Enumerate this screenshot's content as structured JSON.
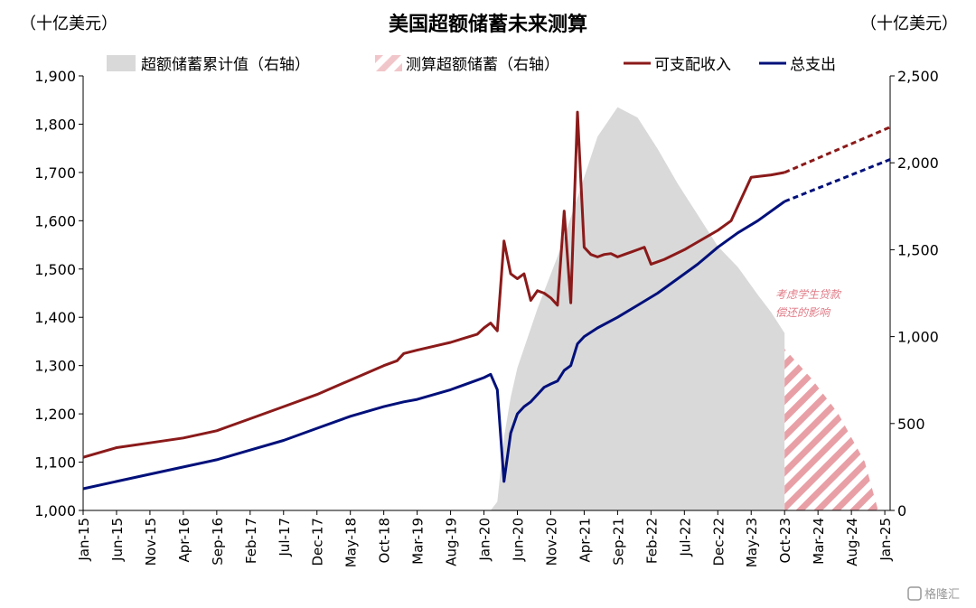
{
  "chart_data": {
    "type": "line",
    "title": "美国超额储蓄未来测算",
    "unit_left": "（十亿美元）",
    "unit_right": "（十亿美元）",
    "legend": [
      {
        "name": "超额储蓄累计值（右轴）",
        "kind": "area",
        "color": "#d9d9d9"
      },
      {
        "name": "测算超额储蓄（右轴）",
        "kind": "hatch",
        "color": "#e8a0a6"
      },
      {
        "name": "可支配收入",
        "kind": "line",
        "color": "#8b1a1a"
      },
      {
        "name": "总支出",
        "kind": "line",
        "color": "#00107a"
      }
    ],
    "y_left": {
      "min": 1000,
      "max": 1900,
      "ticks": [
        "1,000",
        "1,100",
        "1,200",
        "1,300",
        "1,400",
        "1,500",
        "1,600",
        "1,700",
        "1,800",
        "1,900"
      ]
    },
    "y_right": {
      "min": 0,
      "max": 2500,
      "ticks": [
        "0",
        "500",
        "1,000",
        "1,500",
        "2,000",
        "2,500"
      ]
    },
    "x_ticks": [
      "Jan-15",
      "Jun-15",
      "Nov-15",
      "Apr-16",
      "Sep-16",
      "Feb-17",
      "Jul-17",
      "Dec-17",
      "May-18",
      "Oct-18",
      "Mar-19",
      "Aug-19",
      "Jan-20",
      "Jun-20",
      "Nov-20",
      "Apr-21",
      "Sep-21",
      "Feb-22",
      "Jul-22",
      "Dec-22",
      "May-23",
      "Oct-23",
      "Mar-24",
      "Aug-24",
      "Jan-25"
    ],
    "annotation": [
      "考虑学生贷款",
      "偿还的影响"
    ],
    "series": [
      {
        "name": "可支配收入",
        "axis": "left",
        "color": "#8b1a1a",
        "points": [
          [
            "2015-01",
            1110
          ],
          [
            "2015-06",
            1130
          ],
          [
            "2015-11",
            1140
          ],
          [
            "2016-04",
            1150
          ],
          [
            "2016-09",
            1165
          ],
          [
            "2017-02",
            1190
          ],
          [
            "2017-07",
            1215
          ],
          [
            "2017-12",
            1240
          ],
          [
            "2018-05",
            1270
          ],
          [
            "2018-10",
            1300
          ],
          [
            "2018-12",
            1310
          ],
          [
            "2019-01",
            1325
          ],
          [
            "2019-03",
            1332
          ],
          [
            "2019-08",
            1348
          ],
          [
            "2019-12",
            1365
          ],
          [
            "2020-01",
            1378
          ],
          [
            "2020-02",
            1388
          ],
          [
            "2020-03",
            1372
          ],
          [
            "2020-04",
            1558
          ],
          [
            "2020-05",
            1490
          ],
          [
            "2020-06",
            1480
          ],
          [
            "2020-07",
            1490
          ],
          [
            "2020-08",
            1435
          ],
          [
            "2020-09",
            1455
          ],
          [
            "2020-10",
            1450
          ],
          [
            "2020-11",
            1440
          ],
          [
            "2020-12",
            1425
          ],
          [
            "2021-01",
            1620
          ],
          [
            "2021-02",
            1430
          ],
          [
            "2021-03",
            1825
          ],
          [
            "2021-04",
            1545
          ],
          [
            "2021-05",
            1530
          ],
          [
            "2021-06",
            1525
          ],
          [
            "2021-07",
            1530
          ],
          [
            "2021-08",
            1532
          ],
          [
            "2021-09",
            1525
          ],
          [
            "2021-10",
            1530
          ],
          [
            "2021-11",
            1535
          ],
          [
            "2021-12",
            1540
          ],
          [
            "2022-01",
            1545
          ],
          [
            "2022-02",
            1510
          ],
          [
            "2022-03",
            1515
          ],
          [
            "2022-04",
            1520
          ],
          [
            "2022-07",
            1540
          ],
          [
            "2022-12",
            1580
          ],
          [
            "2023-02",
            1600
          ],
          [
            "2023-05",
            1690
          ],
          [
            "2023-08",
            1695
          ],
          [
            "2023-10",
            1700
          ]
        ]
      },
      {
        "name": "可支配收入（测算）",
        "axis": "left",
        "color": "#8b1a1a",
        "dashed": true,
        "points": [
          [
            "2023-10",
            1700
          ],
          [
            "2025-02",
            1795
          ]
        ]
      },
      {
        "name": "总支出",
        "axis": "left",
        "color": "#00107a",
        "points": [
          [
            "2015-01",
            1045
          ],
          [
            "2015-06",
            1060
          ],
          [
            "2015-11",
            1075
          ],
          [
            "2016-04",
            1090
          ],
          [
            "2016-09",
            1105
          ],
          [
            "2017-02",
            1125
          ],
          [
            "2017-07",
            1145
          ],
          [
            "2017-12",
            1170
          ],
          [
            "2018-05",
            1195
          ],
          [
            "2018-10",
            1215
          ],
          [
            "2019-01",
            1225
          ],
          [
            "2019-03",
            1230
          ],
          [
            "2019-08",
            1250
          ],
          [
            "2019-12",
            1270
          ],
          [
            "2020-01",
            1275
          ],
          [
            "2020-02",
            1282
          ],
          [
            "2020-03",
            1250
          ],
          [
            "2020-04",
            1060
          ],
          [
            "2020-05",
            1160
          ],
          [
            "2020-06",
            1200
          ],
          [
            "2020-07",
            1215
          ],
          [
            "2020-08",
            1225
          ],
          [
            "2020-09",
            1240
          ],
          [
            "2020-10",
            1255
          ],
          [
            "2020-11",
            1262
          ],
          [
            "2020-12",
            1268
          ],
          [
            "2021-01",
            1290
          ],
          [
            "2021-02",
            1300
          ],
          [
            "2021-03",
            1345
          ],
          [
            "2021-04",
            1360
          ],
          [
            "2021-06",
            1378
          ],
          [
            "2021-09",
            1400
          ],
          [
            "2021-12",
            1425
          ],
          [
            "2022-03",
            1450
          ],
          [
            "2022-06",
            1480
          ],
          [
            "2022-09",
            1510
          ],
          [
            "2022-12",
            1545
          ],
          [
            "2023-03",
            1575
          ],
          [
            "2023-06",
            1600
          ],
          [
            "2023-10",
            1640
          ]
        ]
      },
      {
        "name": "总支出（测算）",
        "axis": "left",
        "color": "#00107a",
        "dashed": true,
        "points": [
          [
            "2023-10",
            1640
          ],
          [
            "2025-02",
            1728
          ]
        ]
      },
      {
        "name": "超额储蓄累计值（右轴）",
        "axis": "right",
        "color": "#d9d9d9",
        "points": [
          [
            "2020-02",
            0
          ],
          [
            "2020-03",
            50
          ],
          [
            "2020-04",
            420
          ],
          [
            "2020-05",
            650
          ],
          [
            "2020-06",
            820
          ],
          [
            "2020-09",
            1160
          ],
          [
            "2020-12",
            1460
          ],
          [
            "2021-03",
            1800
          ],
          [
            "2021-06",
            2150
          ],
          [
            "2021-09",
            2320
          ],
          [
            "2021-12",
            2260
          ],
          [
            "2022-03",
            2080
          ],
          [
            "2022-06",
            1880
          ],
          [
            "2022-09",
            1700
          ],
          [
            "2022-12",
            1520
          ],
          [
            "2023-03",
            1400
          ],
          [
            "2023-06",
            1240
          ],
          [
            "2023-08",
            1140
          ],
          [
            "2023-10",
            1020
          ]
        ]
      },
      {
        "name": "测算超额储蓄（右轴）",
        "axis": "right",
        "color": "#e8a0a6",
        "points": [
          [
            "2023-10",
            930
          ],
          [
            "2024-02",
            760
          ],
          [
            "2024-06",
            560
          ],
          [
            "2024-10",
            280
          ],
          [
            "2024-12",
            0
          ]
        ]
      }
    ]
  },
  "watermark": "格隆汇"
}
